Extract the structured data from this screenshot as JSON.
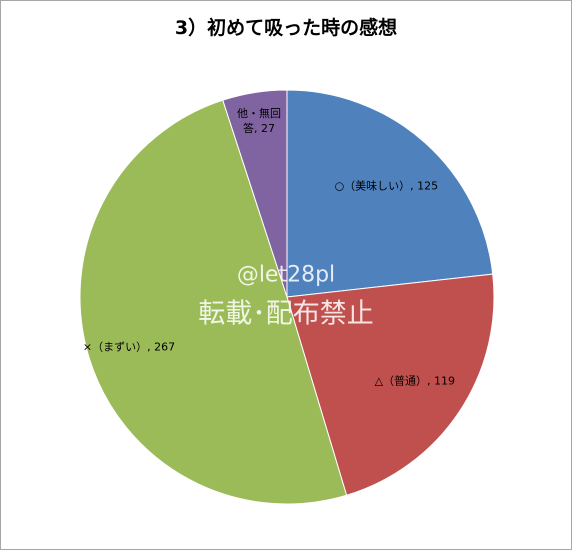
{
  "chart_data": {
    "type": "pie",
    "title": "3）初めて吸った時の感想",
    "categories": [
      "○（美味しい）",
      "△（普通）",
      "×（まずい）",
      "他・無回答"
    ],
    "values": [
      125,
      119,
      267,
      27
    ],
    "value_labels": [
      "○（美味しい）, 125",
      "△（普通）, 119",
      "×（まずい）, 267",
      "他・無回答, 27"
    ],
    "colors": [
      "#4f81bd",
      "#c0504d",
      "#9bbb59",
      "#8064a2"
    ],
    "start_angle": 0,
    "direction": "clockwise",
    "annotations": [
      "@let28pl",
      "転載･配布禁止"
    ]
  }
}
